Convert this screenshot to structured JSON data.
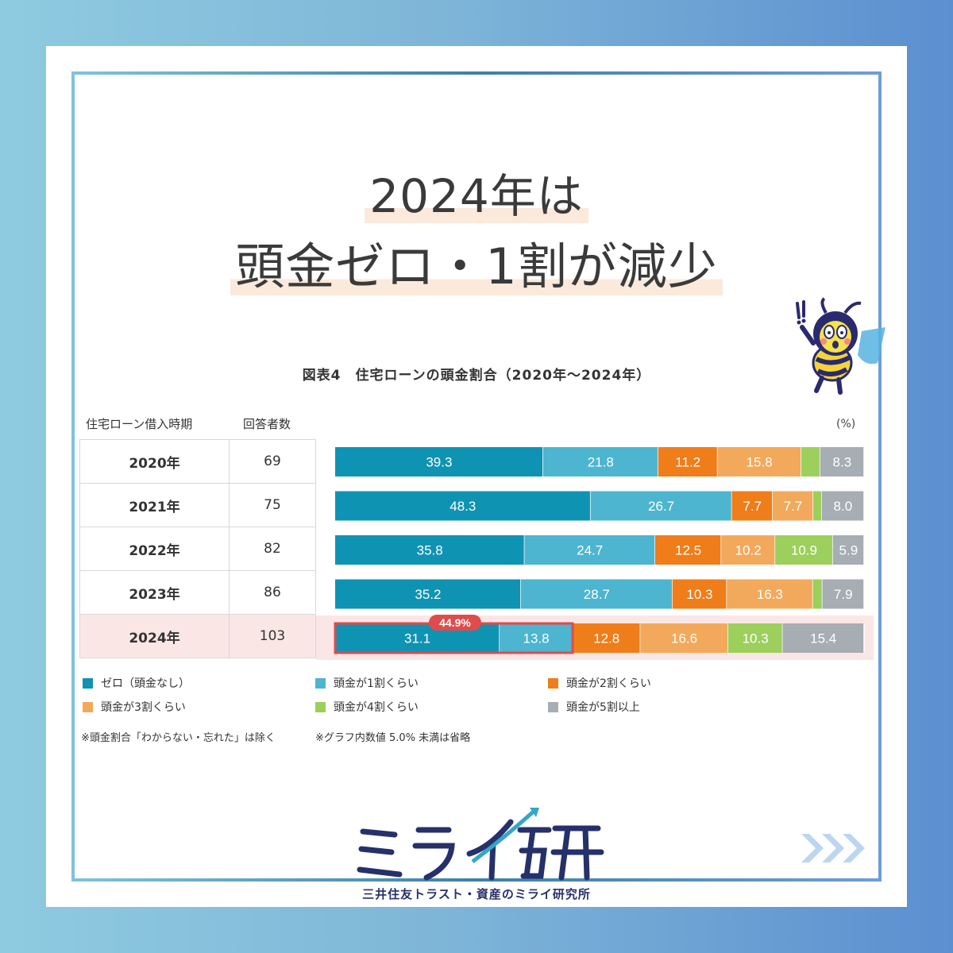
{
  "headline": {
    "line1": "2024年は",
    "line2": "頭金ゼロ・1割が減少"
  },
  "table": {
    "col_period": "住宅ローン借入時期",
    "col_respondents": "回答者数",
    "unit": "(%)",
    "rows": [
      {
        "year": "2020年",
        "n": "69"
      },
      {
        "year": "2021年",
        "n": "75"
      },
      {
        "year": "2022年",
        "n": "82"
      },
      {
        "year": "2023年",
        "n": "86"
      },
      {
        "year": "2024年",
        "n": "103"
      }
    ]
  },
  "legend": [
    {
      "label": "ゼロ（頭金なし）"
    },
    {
      "label": "頭金が1割くらい"
    },
    {
      "label": "頭金が2割くらい"
    },
    {
      "label": "頭金が3割くらい"
    },
    {
      "label": "頭金が4割くらい"
    },
    {
      "label": "頭金が5割以上"
    }
  ],
  "notes": {
    "note1": "※頭金割合「わからない・忘れた」は除く",
    "note2": "※グラフ内数値 5.0% 未満は省略"
  },
  "branding": {
    "logo_text": "ミライ研",
    "company": "三井住友トラスト・資産のミライ研究所"
  },
  "chart_data": {
    "type": "bar",
    "orientation": "horizontal",
    "stacked": true,
    "title": "図表4　住宅ローンの頭金割合（2020年〜2024年）",
    "unit": "(%)",
    "categories": [
      "2020年",
      "2021年",
      "2022年",
      "2023年",
      "2024年"
    ],
    "series": [
      {
        "name": "ゼロ（頭金なし）",
        "color": "#0f93b2",
        "values": [
          39.3,
          48.3,
          35.8,
          35.2,
          31.1
        ]
      },
      {
        "name": "頭金が1割くらい",
        "color": "#4db5cf",
        "values": [
          21.8,
          26.7,
          24.7,
          28.7,
          13.8
        ]
      },
      {
        "name": "頭金が2割くらい",
        "color": "#ef7d1a",
        "values": [
          11.2,
          7.7,
          12.5,
          10.3,
          12.8
        ]
      },
      {
        "name": "頭金が3割くらい",
        "color": "#f3a95b",
        "values": [
          15.8,
          7.7,
          10.2,
          16.3,
          16.6
        ]
      },
      {
        "name": "頭金が4割くらい",
        "color": "#9ccf5c",
        "values": [
          3.6,
          1.6,
          10.9,
          1.8,
          10.3
        ]
      },
      {
        "name": "頭金が5割以上",
        "color": "#a6adb3",
        "values": [
          8.3,
          8.0,
          5.9,
          7.9,
          15.4
        ]
      }
    ],
    "label_threshold": 5.0,
    "annotation": {
      "category": "2024年",
      "text": "44.9%",
      "sum_of": [
        "ゼロ（頭金なし）",
        "頭金が1割くらい"
      ],
      "color": "#e04b4b"
    }
  }
}
